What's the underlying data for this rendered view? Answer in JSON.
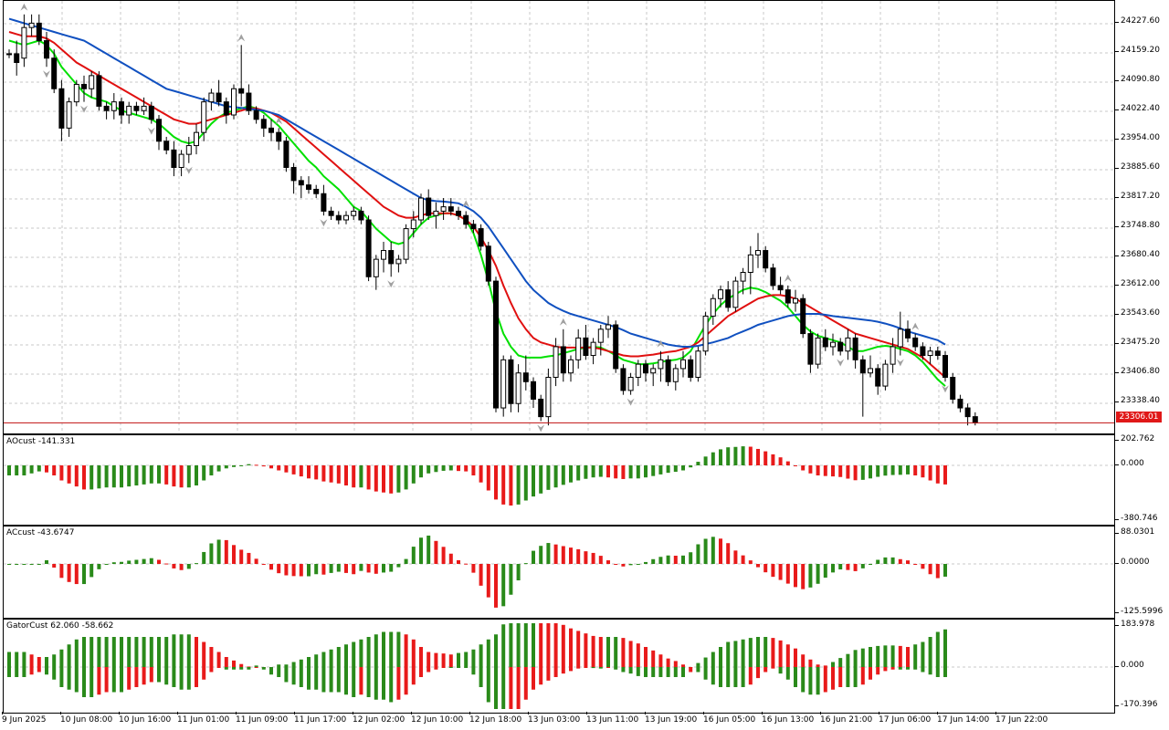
{
  "price_pane": {
    "current_price_label": "23306.01",
    "price_ticks": [
      "24227.60",
      "24159.20",
      "24090.80",
      "24022.40",
      "23954.00",
      "23885.60",
      "23817.20",
      "23748.80",
      "23680.40",
      "23612.00",
      "23543.60",
      "23475.20",
      "23406.80",
      "23338.40"
    ],
    "colors": {
      "background": "#ffffff",
      "grid": "#c8c8c8",
      "candle_up": "#ffffff",
      "candle_down": "#000000",
      "ma_fast": "#00e000",
      "ma_mid": "#e01010",
      "ma_slow": "#1050c0",
      "fractal": "#a0a0a0",
      "current_price_line": "#c01010"
    }
  },
  "ao_pane": {
    "label": "AOcust -141.331",
    "ticks": [
      "202.762",
      "0.000",
      "-380.746"
    ]
  },
  "ac_pane": {
    "label": "ACcust -43.6747",
    "ticks": [
      "88.0301",
      "0.0000",
      "-125.5996"
    ]
  },
  "gator_pane": {
    "label": "GatorCust 62.060 -58.662",
    "ticks": [
      "183.978",
      "0.000",
      "-170.396"
    ]
  },
  "time_axis": {
    "labels": [
      "9 Jun 2025",
      "10 Jun 08:00",
      "10 Jun 16:00",
      "11 Jun 01:00",
      "11 Jun 09:00",
      "11 Jun 17:00",
      "12 Jun 02:00",
      "12 Jun 10:00",
      "12 Jun 18:00",
      "13 Jun 03:00",
      "13 Jun 11:00",
      "13 Jun 19:00",
      "16 Jun 05:00",
      "16 Jun 13:00",
      "16 Jun 21:00",
      "17 Jun 06:00",
      "17 Jun 14:00",
      "17 Jun 22:00"
    ]
  },
  "chart_data": {
    "type": "candlestick",
    "ylim": [
      23290,
      24250
    ],
    "candles": [
      [
        24150,
        24160,
        24140,
        24150
      ],
      [
        24150,
        24180,
        24100,
        24130
      ],
      [
        24140,
        24240,
        24120,
        24210
      ],
      [
        24210,
        24240,
        24190,
        24220
      ],
      [
        24220,
        24240,
        24170,
        24180
      ],
      [
        24180,
        24200,
        24120,
        24140
      ],
      [
        24140,
        24160,
        24060,
        24070
      ],
      [
        24070,
        24090,
        23950,
        23980
      ],
      [
        23980,
        24050,
        23960,
        24040
      ],
      [
        24040,
        24090,
        24030,
        24080
      ],
      [
        24080,
        24100,
        24040,
        24070
      ],
      [
        24070,
        24110,
        24050,
        24100
      ],
      [
        24100,
        24110,
        24020,
        24030
      ],
      [
        24030,
        24040,
        24000,
        24020
      ],
      [
        24020,
        24060,
        24000,
        24040
      ],
      [
        24040,
        24050,
        23990,
        24010
      ],
      [
        24010,
        24040,
        23990,
        24030
      ],
      [
        24030,
        24040,
        24010,
        24020
      ],
      [
        24020,
        24050,
        24010,
        24030
      ],
      [
        24030,
        24040,
        23990,
        24000
      ],
      [
        24000,
        24010,
        23930,
        23950
      ],
      [
        23950,
        23960,
        23920,
        23930
      ],
      [
        23930,
        23950,
        23870,
        23890
      ],
      [
        23890,
        23930,
        23870,
        23920
      ],
      [
        23920,
        23960,
        23900,
        23940
      ],
      [
        23940,
        23990,
        23920,
        23970
      ],
      [
        23970,
        24050,
        23950,
        24040
      ],
      [
        24040,
        24070,
        24020,
        24060
      ],
      [
        24060,
        24090,
        24030,
        24040
      ],
      [
        24040,
        24050,
        23990,
        24010
      ],
      [
        24010,
        24080,
        24000,
        24070
      ],
      [
        24070,
        24170,
        24030,
        24060
      ],
      [
        24060,
        24080,
        24010,
        24020
      ],
      [
        24020,
        24030,
        23990,
        24000
      ],
      [
        24000,
        24010,
        23960,
        23980
      ],
      [
        23980,
        24000,
        23950,
        23970
      ],
      [
        23970,
        23980,
        23930,
        23950
      ],
      [
        23950,
        23960,
        23880,
        23890
      ],
      [
        23890,
        23900,
        23830,
        23860
      ],
      [
        23860,
        23870,
        23820,
        23850
      ],
      [
        23850,
        23870,
        23830,
        23840
      ],
      [
        23840,
        23850,
        23820,
        23830
      ],
      [
        23830,
        23850,
        23780,
        23790
      ],
      [
        23790,
        23800,
        23770,
        23780
      ],
      [
        23780,
        23790,
        23760,
        23770
      ],
      [
        23770,
        23790,
        23760,
        23780
      ],
      [
        23780,
        23800,
        23770,
        23790
      ],
      [
        23790,
        23800,
        23760,
        23770
      ],
      [
        23770,
        23780,
        23630,
        23640
      ],
      [
        23640,
        23690,
        23610,
        23680
      ],
      [
        23680,
        23720,
        23650,
        23700
      ],
      [
        23700,
        23720,
        23640,
        23670
      ],
      [
        23670,
        23690,
        23650,
        23680
      ],
      [
        23680,
        23760,
        23670,
        23750
      ],
      [
        23750,
        23790,
        23730,
        23770
      ],
      [
        23770,
        23830,
        23760,
        23820
      ],
      [
        23820,
        23840,
        23770,
        23780
      ],
      [
        23780,
        23810,
        23750,
        23790
      ],
      [
        23790,
        23820,
        23770,
        23800
      ],
      [
        23800,
        23820,
        23780,
        23790
      ],
      [
        23790,
        23800,
        23770,
        23780
      ],
      [
        23780,
        23790,
        23750,
        23760
      ],
      [
        23760,
        23770,
        23740,
        23750
      ],
      [
        23750,
        23760,
        23700,
        23710
      ],
      [
        23710,
        23720,
        23620,
        23630
      ],
      [
        23630,
        23640,
        23330,
        23340
      ],
      [
        23340,
        23460,
        23320,
        23450
      ],
      [
        23450,
        23460,
        23330,
        23350
      ],
      [
        23350,
        23440,
        23330,
        23420
      ],
      [
        23420,
        23460,
        23380,
        23400
      ],
      [
        23400,
        23410,
        23340,
        23360
      ],
      [
        23360,
        23370,
        23310,
        23320
      ],
      [
        23320,
        23430,
        23300,
        23410
      ],
      [
        23410,
        23500,
        23390,
        23480
      ],
      [
        23480,
        23520,
        23400,
        23420
      ],
      [
        23420,
        23460,
        23400,
        23450
      ],
      [
        23450,
        23520,
        23430,
        23500
      ],
      [
        23500,
        23530,
        23450,
        23460
      ],
      [
        23460,
        23500,
        23440,
        23490
      ],
      [
        23490,
        23530,
        23460,
        23520
      ],
      [
        23520,
        23550,
        23500,
        23530
      ],
      [
        23530,
        23540,
        23420,
        23430
      ],
      [
        23430,
        23440,
        23370,
        23380
      ],
      [
        23380,
        23420,
        23370,
        23410
      ],
      [
        23410,
        23450,
        23390,
        23440
      ],
      [
        23440,
        23450,
        23400,
        23420
      ],
      [
        23420,
        23440,
        23390,
        23430
      ],
      [
        23430,
        23470,
        23400,
        23450
      ],
      [
        23450,
        23460,
        23390,
        23400
      ],
      [
        23400,
        23440,
        23380,
        23430
      ],
      [
        23430,
        23470,
        23410,
        23450
      ],
      [
        23450,
        23460,
        23400,
        23410
      ],
      [
        23410,
        23480,
        23400,
        23470
      ],
      [
        23470,
        23560,
        23460,
        23550
      ],
      [
        23550,
        23600,
        23530,
        23590
      ],
      [
        23590,
        23620,
        23570,
        23610
      ],
      [
        23610,
        23630,
        23560,
        23570
      ],
      [
        23570,
        23640,
        23560,
        23630
      ],
      [
        23630,
        23660,
        23600,
        23650
      ],
      [
        23650,
        23710,
        23600,
        23690
      ],
      [
        23690,
        23740,
        23660,
        23700
      ],
      [
        23700,
        23710,
        23650,
        23660
      ],
      [
        23660,
        23670,
        23610,
        23620
      ],
      [
        23620,
        23640,
        23600,
        23610
      ],
      [
        23610,
        23620,
        23570,
        23580
      ],
      [
        23580,
        23610,
        23560,
        23590
      ],
      [
        23590,
        23600,
        23500,
        23510
      ],
      [
        23510,
        23520,
        23420,
        23440
      ],
      [
        23440,
        23510,
        23430,
        23500
      ],
      [
        23500,
        23520,
        23470,
        23480
      ],
      [
        23480,
        23510,
        23460,
        23490
      ],
      [
        23490,
        23500,
        23460,
        23470
      ],
      [
        23470,
        23520,
        23450,
        23500
      ],
      [
        23500,
        23510,
        23430,
        23450
      ],
      [
        23450,
        23460,
        23320,
        23420
      ],
      [
        23420,
        23460,
        23410,
        23430
      ],
      [
        23430,
        23440,
        23370,
        23390
      ],
      [
        23390,
        23450,
        23380,
        23440
      ],
      [
        23440,
        23500,
        23420,
        23480
      ],
      [
        23480,
        23560,
        23460,
        23520
      ],
      [
        23520,
        23540,
        23490,
        23500
      ],
      [
        23500,
        23510,
        23470,
        23480
      ],
      [
        23480,
        23490,
        23450,
        23460
      ],
      [
        23460,
        23480,
        23440,
        23470
      ],
      [
        23470,
        23480,
        23450,
        23460
      ],
      [
        23460,
        23470,
        23400,
        23410
      ],
      [
        23410,
        23420,
        23350,
        23360
      ],
      [
        23360,
        23370,
        23330,
        23340
      ],
      [
        23340,
        23350,
        23300,
        23320
      ],
      [
        23320,
        23330,
        23300,
        23306
      ]
    ],
    "series": [
      {
        "values": [
          24180,
          24175,
          24170,
          24175,
          24180,
          24170,
          24150,
          24120,
          24100,
          24080,
          24060,
          24050,
          24045,
          24040,
          24030,
          24020,
          24015,
          24010,
          24005,
          24000,
          23990,
          23975,
          23960,
          23950,
          23945,
          23950,
          23970,
          23990,
          24005,
          24015,
          24020,
          24025,
          24030,
          24025,
          24015,
          24000,
          23985,
          23965,
          23945,
          23925,
          23905,
          23890,
          23870,
          23855,
          23840,
          23820,
          23800,
          23790,
          23770,
          23750,
          23735,
          23720,
          23715,
          23720,
          23740,
          23760,
          23775,
          23780,
          23785,
          23785,
          23780,
          23770,
          23740,
          23690,
          23630,
          23560,
          23510,
          23480,
          23460,
          23455,
          23455,
          23455,
          23458,
          23460,
          23465,
          23470,
          23475,
          23478,
          23480,
          23478,
          23470,
          23460,
          23450,
          23445,
          23440,
          23440,
          23442,
          23445,
          23448,
          23450,
          23455,
          23470,
          23500,
          23530,
          23555,
          23575,
          23590,
          23600,
          23610,
          23615,
          23612,
          23605,
          23595,
          23585,
          23570,
          23550,
          23530,
          23515,
          23505,
          23500,
          23495,
          23490,
          23480,
          23470,
          23470,
          23475,
          23480,
          23482,
          23480,
          23475,
          23470,
          23460,
          23445,
          23425,
          23405,
          23390
        ]
      },
      {
        "values": [
          24200,
          24195,
          24190,
          24190,
          24190,
          24185,
          24175,
          24160,
          24145,
          24130,
          24120,
          24110,
          24100,
          24090,
          24080,
          24070,
          24060,
          24050,
          24040,
          24030,
          24020,
          24010,
          24000,
          23995,
          23990,
          23990,
          23995,
          24000,
          24005,
          24010,
          24015,
          24020,
          24025,
          24025,
          24020,
          24015,
          24005,
          23995,
          23980,
          23965,
          23950,
          23935,
          23920,
          23905,
          23890,
          23875,
          23860,
          23845,
          23830,
          23815,
          23800,
          23790,
          23780,
          23775,
          23775,
          23780,
          23785,
          23785,
          23785,
          23785,
          23780,
          23770,
          23755,
          23730,
          23700,
          23665,
          23620,
          23580,
          23545,
          23520,
          23500,
          23490,
          23485,
          23480,
          23478,
          23478,
          23478,
          23478,
          23478,
          23475,
          23470,
          23465,
          23460,
          23458,
          23458,
          23460,
          23462,
          23465,
          23468,
          23470,
          23475,
          23480,
          23490,
          23505,
          23520,
          23535,
          23550,
          23560,
          23570,
          23580,
          23590,
          23595,
          23598,
          23598,
          23595,
          23590,
          23580,
          23570,
          23560,
          23550,
          23540,
          23530,
          23520,
          23510,
          23505,
          23500,
          23495,
          23490,
          23485,
          23480,
          23475,
          23465,
          23455,
          23440,
          23425,
          23410
        ]
      },
      {
        "values": [
          24230,
          24225,
          24220,
          24215,
          24210,
          24205,
          24200,
          24195,
          24190,
          24185,
          24180,
          24170,
          24160,
          24150,
          24140,
          24130,
          24120,
          24110,
          24100,
          24090,
          24080,
          24070,
          24065,
          24060,
          24055,
          24050,
          24045,
          24040,
          24035,
          24030,
          24028,
          24026,
          24024,
          24022,
          24020,
          24015,
          24010,
          24000,
          23990,
          23980,
          23970,
          23960,
          23950,
          23940,
          23930,
          23920,
          23910,
          23900,
          23890,
          23880,
          23870,
          23860,
          23850,
          23840,
          23830,
          23820,
          23815,
          23813,
          23812,
          23810,
          23808,
          23800,
          23790,
          23775,
          23755,
          23730,
          23705,
          23680,
          23655,
          23630,
          23610,
          23595,
          23580,
          23570,
          23562,
          23555,
          23550,
          23545,
          23540,
          23535,
          23530,
          23525,
          23518,
          23510,
          23505,
          23500,
          23495,
          23490,
          23485,
          23482,
          23480,
          23480,
          23482,
          23486,
          23490,
          23495,
          23500,
          23508,
          23515,
          23522,
          23530,
          23535,
          23540,
          23545,
          23550,
          23553,
          23555,
          23555,
          23555,
          23553,
          23550,
          23548,
          23546,
          23544,
          23542,
          23540,
          23537,
          23533,
          23528,
          23522,
          23515,
          23510,
          23505,
          23500,
          23495,
          23485
        ]
      }
    ]
  }
}
